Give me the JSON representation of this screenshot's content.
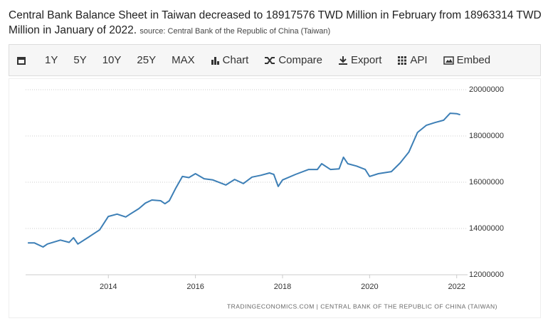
{
  "chart_data": {
    "type": "line",
    "title": "Central Bank Balance Sheet in Taiwan decreased to 18917576 TWD Million in February from 18963314 TWD Million in January of 2022.",
    "source": "source: Central Bank of the Republic of China (Taiwan)",
    "footer": "TRADINGECONOMICS.COM  |  CENTRAL BANK OF THE REPUBLIC OF CHINA (TAIWAN)",
    "xlim": [
      2012.1,
      2022.25
    ],
    "xticks": [
      2014,
      2016,
      2018,
      2020,
      2022
    ],
    "ylim": [
      12000000,
      20000000
    ],
    "yticks": [
      12000000,
      14000000,
      16000000,
      18000000,
      20000000
    ],
    "grid": true,
    "color": "#3d7fb6",
    "x": [
      2012.15,
      2012.3,
      2012.5,
      2012.6,
      2012.9,
      2013.1,
      2013.2,
      2013.3,
      2013.55,
      2013.8,
      2014.0,
      2014.2,
      2014.4,
      2014.5,
      2014.7,
      2014.85,
      2015.0,
      2015.2,
      2015.3,
      2015.4,
      2015.55,
      2015.7,
      2015.85,
      2016.0,
      2016.2,
      2016.4,
      2016.7,
      2016.9,
      2017.1,
      2017.3,
      2017.5,
      2017.7,
      2017.8,
      2017.9,
      2018.0,
      2018.3,
      2018.6,
      2018.8,
      2018.9,
      2019.1,
      2019.3,
      2019.4,
      2019.5,
      2019.7,
      2019.9,
      2020.0,
      2020.2,
      2020.5,
      2020.7,
      2020.9,
      2021.1,
      2021.3,
      2021.5,
      2021.7,
      2021.85,
      2022.0,
      2022.08
    ],
    "values": [
      13380000,
      13380000,
      13200000,
      13330000,
      13500000,
      13400000,
      13600000,
      13330000,
      13630000,
      13940000,
      14520000,
      14620000,
      14500000,
      14620000,
      14860000,
      15100000,
      15230000,
      15200000,
      15070000,
      15200000,
      15750000,
      16250000,
      16200000,
      16370000,
      16150000,
      16100000,
      15880000,
      16120000,
      15940000,
      16220000,
      16300000,
      16400000,
      16340000,
      15820000,
      16100000,
      16340000,
      16550000,
      16550000,
      16800000,
      16550000,
      16580000,
      17080000,
      16800000,
      16700000,
      16550000,
      16250000,
      16370000,
      16460000,
      16830000,
      17300000,
      18150000,
      18460000,
      18580000,
      18680000,
      18980000,
      18963314,
      18917576
    ]
  },
  "toolbar": [
    "1Y",
    "5Y",
    "10Y",
    "25Y",
    "MAX",
    "Chart",
    "Compare",
    "Export",
    "API",
    "Embed"
  ]
}
